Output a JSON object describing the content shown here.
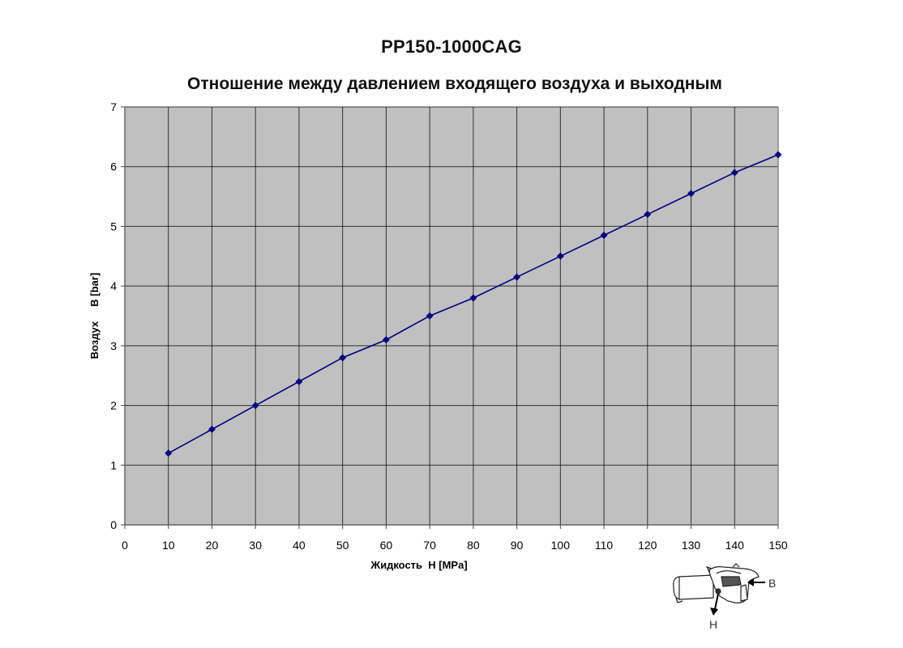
{
  "header": {
    "model": "PP150-1000CAG"
  },
  "chart_data": {
    "type": "line",
    "title": "Отношение между давлением входящего воздуха и выходным",
    "xlabel": "Жидкость  H [MPa]",
    "ylabel": "Воздух     B [bar]",
    "xlim": [
      0,
      150
    ],
    "ylim": [
      0,
      7
    ],
    "x_ticks": [
      0,
      10,
      20,
      30,
      40,
      50,
      60,
      70,
      80,
      90,
      100,
      110,
      120,
      130,
      140,
      150
    ],
    "y_ticks": [
      0,
      1,
      2,
      3,
      4,
      5,
      6,
      7
    ],
    "grid": true,
    "legend": "none",
    "series": [
      {
        "name": "Воздух B [bar]",
        "color": "#000080",
        "marker": "diamond",
        "x": [
          10,
          20,
          30,
          40,
          50,
          60,
          70,
          80,
          90,
          100,
          110,
          120,
          130,
          140,
          150
        ],
        "values": [
          1.2,
          1.6,
          2.0,
          2.4,
          2.8,
          3.1,
          3.5,
          3.8,
          4.15,
          4.5,
          4.85,
          5.2,
          5.55,
          5.9,
          6.2
        ]
      }
    ],
    "plot_background": "#c0c0c0",
    "gridline_color": "#000000"
  },
  "diagram": {
    "label_b": "B",
    "label_h": "H"
  }
}
